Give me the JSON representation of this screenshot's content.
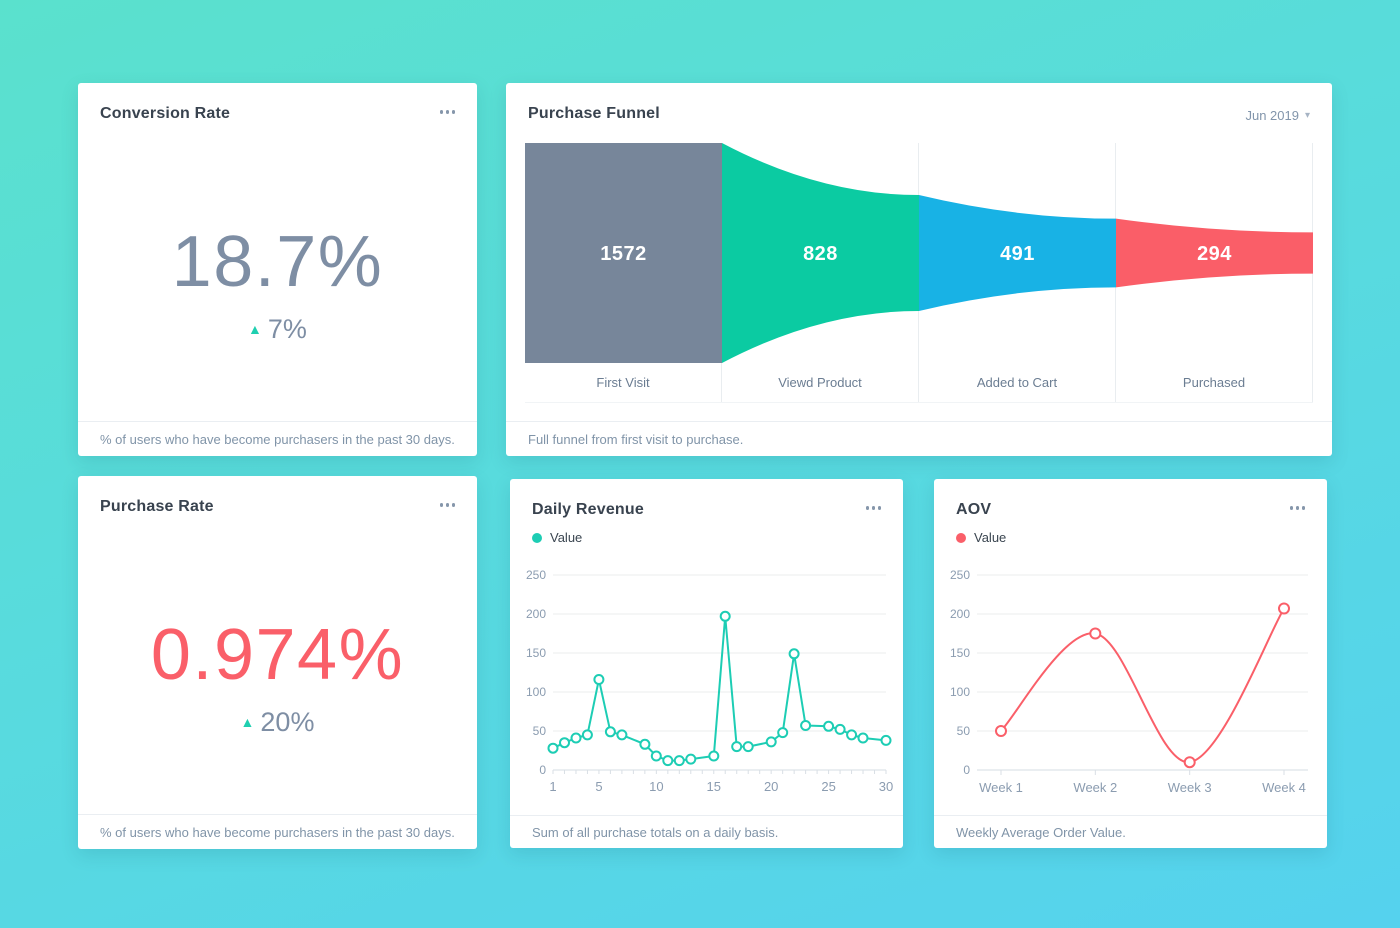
{
  "icons": {
    "delta_up": "▲",
    "caret_down": "▾",
    "more": "ellipsis-horizontal"
  },
  "cards": {
    "conversion_rate": {
      "title": "Conversion Rate",
      "value": "18.7%",
      "delta": "7%",
      "delta_direction": "up",
      "footer": "% of users who have become purchasers in the past 30 days."
    },
    "purchase_funnel": {
      "title": "Purchase Funnel",
      "period": "Jun 2019",
      "footer": "Full funnel from first visit to purchase."
    },
    "purchase_rate": {
      "title": "Purchase Rate",
      "value": "0.974%",
      "delta": "20%",
      "delta_direction": "up",
      "footer": "% of users who have become purchasers in the past 30 days."
    },
    "daily_revenue": {
      "title": "Daily Revenue",
      "legend": "Value",
      "footer": "Sum of all purchase totals on a daily basis."
    },
    "aov": {
      "title": "AOV",
      "legend": "Value",
      "footer": "Weekly Average Order Value."
    }
  },
  "chart_data": [
    {
      "id": "purchase_funnel",
      "type": "funnel",
      "title": "Purchase Funnel",
      "period": "Jun 2019",
      "categories": [
        "First Visit",
        "Viewd Product",
        "Added to Cart",
        "Purchased"
      ],
      "values": [
        1572,
        828,
        491,
        294
      ],
      "colors": [
        "#77869A",
        "#0BCBA2",
        "#18B2E5",
        "#FA5E68"
      ]
    },
    {
      "id": "daily_revenue",
      "type": "line",
      "title": "Daily Revenue",
      "smooth": false,
      "xlim": [
        1,
        30
      ],
      "ylim": [
        0,
        250
      ],
      "xticks": [
        1,
        5,
        10,
        15,
        20,
        25,
        30
      ],
      "yticks": [
        0,
        50,
        100,
        150,
        200,
        250
      ],
      "grid": true,
      "legend_position": "top-left",
      "series": [
        {
          "name": "Value",
          "color": "#1DCDB4",
          "x": [
            1,
            2,
            3,
            4,
            5,
            6,
            7,
            9,
            10,
            11,
            12,
            13,
            15,
            16,
            17,
            18,
            20,
            21,
            22,
            23,
            25,
            26,
            27,
            28,
            30
          ],
          "y": [
            28,
            35,
            41,
            45,
            116,
            49,
            45,
            33,
            18,
            12,
            12,
            14,
            18,
            197,
            30,
            30,
            36,
            48,
            149,
            57,
            56,
            52,
            45,
            41,
            38
          ]
        }
      ]
    },
    {
      "id": "aov",
      "type": "line",
      "title": "AOV",
      "smooth": true,
      "ylim": [
        0,
        250
      ],
      "yticks": [
        0,
        50,
        100,
        150,
        200,
        250
      ],
      "grid": true,
      "legend_position": "top-left",
      "categories": [
        "Week 1",
        "Week 2",
        "Week 3",
        "Week 4"
      ],
      "series": [
        {
          "name": "Value",
          "color": "#FA5F69",
          "x": [
            "Week 1",
            "Week 2",
            "Week 3",
            "Week 4"
          ],
          "y": [
            50,
            175,
            10,
            207
          ]
        }
      ]
    }
  ]
}
